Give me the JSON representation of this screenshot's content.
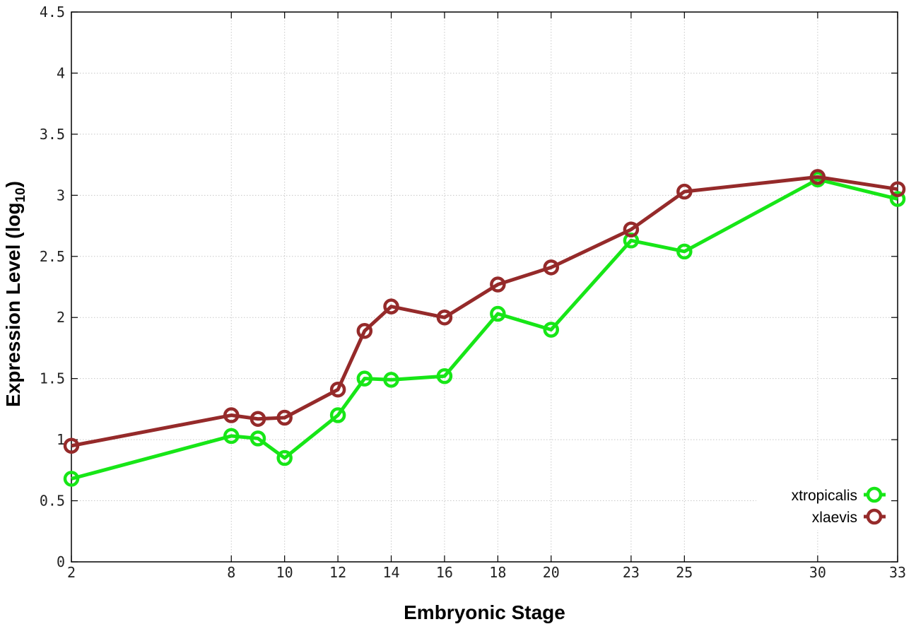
{
  "chart_data": {
    "type": "line",
    "xlabel": "Embryonic Stage",
    "ylabel": "Expression Level (log",
    "ylabel_sub": "10",
    "ylabel_close": ")",
    "xlim": [
      2,
      33
    ],
    "ylim": [
      0,
      4.5
    ],
    "x_ticks": [
      2,
      8,
      10,
      12,
      14,
      16,
      18,
      20,
      23,
      25,
      30,
      33
    ],
    "x_tick_labels": [
      "2",
      "8",
      "10",
      "12",
      "14",
      "16",
      "18",
      "20",
      "23",
      "25",
      "30",
      "33"
    ],
    "y_ticks": [
      0,
      0.5,
      1,
      1.5,
      2,
      2.5,
      3,
      3.5,
      4,
      4.5
    ],
    "y_tick_labels": [
      "0",
      "0.5",
      "1",
      "1.5",
      "2",
      "2.5",
      "3",
      "3.5",
      "4",
      "4.5"
    ],
    "grid": true,
    "legend_position": "bottom-right",
    "x": [
      2,
      8,
      9,
      10,
      12,
      13,
      14,
      16,
      18,
      20,
      23,
      25,
      30,
      33
    ],
    "series": [
      {
        "name": "xtropicalis",
        "color": "#17e617",
        "values": [
          0.68,
          1.03,
          1.01,
          0.85,
          1.2,
          1.5,
          1.49,
          1.52,
          2.03,
          1.9,
          2.63,
          2.54,
          3.13,
          2.97
        ]
      },
      {
        "name": "xlaevis",
        "color": "#952a2a",
        "values": [
          0.95,
          1.2,
          1.17,
          1.18,
          1.41,
          1.89,
          2.09,
          2.0,
          2.27,
          2.41,
          2.72,
          3.03,
          3.15,
          3.05
        ]
      }
    ]
  }
}
